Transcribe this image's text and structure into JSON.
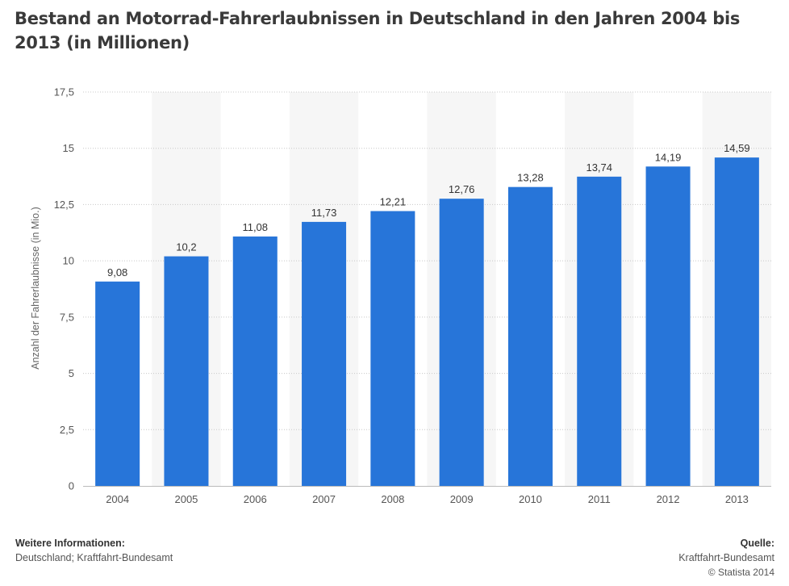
{
  "header": {
    "title": "Bestand an Motorrad-Fahrerlaubnissen in Deutschland in den Jahren 2004 bis 2013 (in Millionen)"
  },
  "chart_data": {
    "type": "bar",
    "categories": [
      "2004",
      "2005",
      "2006",
      "2007",
      "2008",
      "2009",
      "2010",
      "2011",
      "2012",
      "2013"
    ],
    "values": [
      9.08,
      10.2,
      11.08,
      11.73,
      12.21,
      12.76,
      13.28,
      13.74,
      14.19,
      14.59
    ],
    "value_labels": [
      "9,08",
      "10,2",
      "11,08",
      "11,73",
      "12,21",
      "12,76",
      "13,28",
      "13,74",
      "14,19",
      "14,59"
    ],
    "ylabel": "Anzahl der Fahrerlaubnisse (in Mio.)",
    "ylim": [
      0,
      17.5
    ],
    "yticks": [
      0,
      2.5,
      5,
      7.5,
      10,
      12.5,
      15,
      17.5
    ],
    "ytick_labels": [
      "0",
      "2,5",
      "5",
      "7,5",
      "10",
      "12,5",
      "15",
      "17,5"
    ],
    "grid": true,
    "bar_color": "#2775d9"
  },
  "footer": {
    "info_heading": "Weitere Informationen:",
    "info_text": "Deutschland; Kraftfahrt-Bundesamt",
    "source_heading": "Quelle:",
    "source_text": "Kraftfahrt-Bundesamt",
    "copyright": "© Statista 2014"
  }
}
